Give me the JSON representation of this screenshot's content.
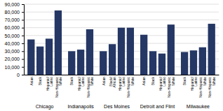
{
  "chart_data": {
    "type": "bar",
    "groups": [
      {
        "name": "Chicago",
        "categories": [
          "Asian",
          "Black",
          "Hispanic/\nLatino",
          "Non-Hispanic\nWhite"
        ],
        "values": [
          45000,
          36000,
          46000,
          82000
        ]
      },
      {
        "name": "Indianapolis",
        "categories": [
          "Black",
          "Hispanic/\nLatino",
          "Non-Hispanic\nWhite"
        ],
        "values": [
          30000,
          32000,
          58000
        ]
      },
      {
        "name": "Des Moines",
        "categories": [
          "Asian",
          "Black/\nAfrican",
          "Hispanic/\nLatino",
          "Non-Hispanic\nWhite"
        ],
        "values": [
          30000,
          39000,
          60000,
          60000
        ]
      },
      {
        "name": "Detroit and Flint",
        "categories": [
          "Asian",
          "Black",
          "Hispanic/\nLatino",
          "Non-Hispanic\nWhite"
        ],
        "values": [
          51000,
          30000,
          27000,
          64000
        ]
      },
      {
        "name": "Milwaukee",
        "categories": [
          "Black",
          "Hispanic/\nLatino",
          "Non-Hispanic\nWhite",
          "Non-Hispanic\nWhite"
        ],
        "values": [
          29000,
          31000,
          35000,
          65000
        ]
      }
    ],
    "color": "#253764",
    "ylim": [
      0,
      90000
    ],
    "yticks": [
      0,
      {
        "value": 10000,
        "label": "10,000"
      },
      {
        "value": 20000,
        "label": "20,000"
      },
      {
        "value": 30000,
        "label": "30,000"
      },
      {
        "value": 40000,
        "label": "40,000"
      },
      {
        "value": 50000,
        "label": "50,000"
      },
      {
        "value": 60000,
        "label": "60,000"
      },
      {
        "value": 70000,
        "label": "70,000"
      },
      {
        "value": 80000,
        "label": "80,000"
      },
      {
        "value": 90000,
        "label": "90,000"
      }
    ],
    "grid": true
  }
}
